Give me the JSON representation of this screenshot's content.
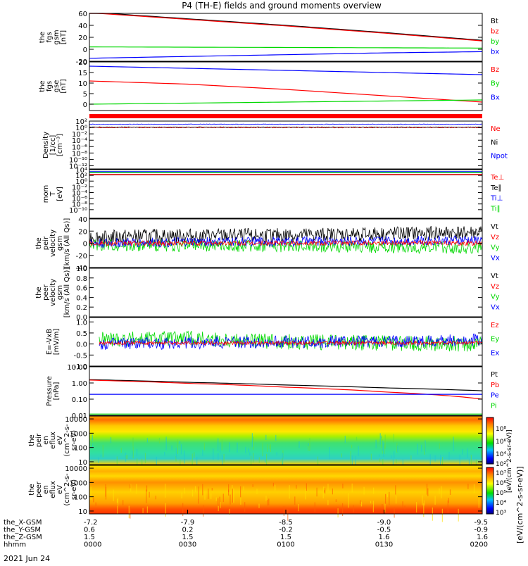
{
  "title": "P4 (TH-E) fields and ground moments overview",
  "date_label": "2021 Jun 24",
  "colorbar_label": "[eV/(cm^2-s-sr-eV)]",
  "colorbar_label_2": "[eV/(cm^2-s-sr-eV)]",
  "colorbar_ticks": [
    "10⁸",
    "10⁶",
    "10⁴",
    "10²"
  ],
  "colorbar_ticks_2": [
    "10⁷",
    "10⁶",
    "10⁵",
    "10⁴",
    "10³"
  ],
  "colors": {
    "black": "#000000",
    "red": "#ff0000",
    "green": "#00d800",
    "blue": "#0000ff"
  },
  "time_axis": {
    "rows": [
      {
        "name": "the_X-GSM",
        "values": [
          "-7.2",
          "-7.9",
          "-8.5",
          "-9.0",
          "-9.5"
        ]
      },
      {
        "name": "the_Y-GSM",
        "values": [
          "0.6",
          "0.2",
          "-0.2",
          "-0.5",
          "-0.9"
        ]
      },
      {
        "name": "the_Z-GSM",
        "values": [
          "1.5",
          "1.5",
          "1.5",
          "1.6",
          "1.6"
        ]
      },
      {
        "name": "hhmm",
        "values": [
          "0000",
          "0030",
          "0100",
          "0130",
          "0200"
        ]
      }
    ]
  },
  "chart_data": [
    {
      "id": "fgs",
      "type": "line",
      "ylabel": "the\nfgs\ngsm\n[nT]",
      "ylim": [
        -20,
        60
      ],
      "yticks": [
        "60",
        "40",
        "20",
        "0",
        "-20"
      ],
      "ytick_values": [
        60,
        40,
        20,
        0,
        -20
      ],
      "legend": [
        {
          "name": "Bt",
          "color": "black"
        },
        {
          "name": "bz",
          "color": "red"
        },
        {
          "name": "by",
          "color": "green"
        },
        {
          "name": "bx",
          "color": "blue"
        }
      ],
      "x": [
        0,
        30,
        60,
        90,
        120
      ],
      "series": [
        {
          "name": "Bt",
          "color": "black",
          "values": [
            62,
            51,
            40,
            28,
            15
          ]
        },
        {
          "name": "bz",
          "color": "red",
          "values": [
            61,
            50,
            39,
            27,
            14
          ]
        },
        {
          "name": "by",
          "color": "green",
          "values": [
            4,
            3.5,
            3,
            2.5,
            2
          ]
        },
        {
          "name": "bx",
          "color": "blue",
          "values": [
            -15,
            -12,
            -9,
            -6,
            -4
          ]
        }
      ]
    },
    {
      "id": "fgs_gse",
      "type": "line",
      "ylabel": "the\nfgs\ngse\n[nT]",
      "ylim": [
        -3,
        20
      ],
      "yticks": [
        "20",
        "15",
        "10",
        "5",
        "0"
      ],
      "ytick_values": [
        20,
        15,
        10,
        5,
        0
      ],
      "legend": [
        {
          "name": "Bz",
          "color": "red"
        },
        {
          "name": "By",
          "color": "green"
        },
        {
          "name": "Bx",
          "color": "blue"
        }
      ],
      "x": [
        0,
        30,
        60,
        90,
        120
      ],
      "series": [
        {
          "name": "Bz",
          "color": "red",
          "values": [
            11,
            9.5,
            7,
            4,
            1
          ]
        },
        {
          "name": "By",
          "color": "green",
          "values": [
            0,
            0.5,
            1,
            1.5,
            2
          ]
        },
        {
          "name": "Bx",
          "color": "blue",
          "values": [
            18,
            17,
            16,
            15,
            14
          ]
        }
      ]
    },
    {
      "id": "density",
      "type": "line",
      "ylabel": "Density\n[1/cc]\n[cm⁻³]",
      "scale": "log",
      "ylim": [
        -13,
        2
      ],
      "yticks": [
        "10²",
        "10⁰",
        "10⁻²",
        "10⁻⁴",
        "10⁻⁶",
        "10⁻⁸",
        "10⁻¹⁰",
        "10⁻¹²"
      ],
      "ytick_values": [
        2,
        0,
        -2,
        -4,
        -6,
        -8,
        -10,
        -12
      ],
      "legend": [
        {
          "name": "Ne",
          "color": "red"
        },
        {
          "name": "Ni",
          "color": "black"
        },
        {
          "name": "Npot",
          "color": "blue"
        }
      ],
      "x": [
        0,
        30,
        60,
        90,
        120
      ],
      "series": [
        {
          "name": "Ne",
          "color": "red",
          "values": [
            0,
            0,
            0,
            0,
            0
          ]
        },
        {
          "name": "Ni",
          "color": "black",
          "values": [
            0.1,
            0.1,
            0.1,
            0.1,
            0.1
          ]
        },
        {
          "name": "Npot",
          "color": "blue",
          "values": [
            1,
            1,
            1,
            1,
            1
          ]
        }
      ]
    },
    {
      "id": "temp",
      "type": "line",
      "ylabel": "mom\nT\n[eV]",
      "scale": "log",
      "ylim": [
        -13,
        4
      ],
      "yticks": [
        "10⁴",
        "10²",
        "10⁰",
        "10⁻²",
        "10⁻⁴",
        "10⁻⁶",
        "10⁻⁸",
        "10⁻¹⁰"
      ],
      "ytick_values": [
        4,
        2,
        0,
        -2,
        -4,
        -6,
        -8,
        -10
      ],
      "legend": [
        {
          "name": "Te⊥",
          "color": "red"
        },
        {
          "name": "Te∥",
          "color": "black"
        },
        {
          "name": "Ti⊥",
          "color": "blue"
        },
        {
          "name": "Ti∥",
          "color": "green"
        }
      ],
      "x": [
        0,
        30,
        60,
        90,
        120
      ],
      "series": [
        {
          "name": "Ti∥",
          "color": "green",
          "values": [
            3,
            3,
            3,
            3,
            3
          ]
        },
        {
          "name": "Ti⊥",
          "color": "blue",
          "values": [
            3.3,
            3.3,
            3.3,
            3.3,
            3.3
          ]
        },
        {
          "name": "Te∥",
          "color": "black",
          "values": [
            2.2,
            2.2,
            2.2,
            2.2,
            2.2
          ]
        },
        {
          "name": "Te⊥",
          "color": "red",
          "values": [
            2.3,
            2.3,
            2.3,
            2.3,
            2.3
          ]
        }
      ]
    },
    {
      "id": "peir_vel",
      "type": "line",
      "ylabel": "the\npeir\nvelocity\ngsm\n[km/s (All Qs)]",
      "ylim": [
        -40,
        40
      ],
      "yticks": [
        "40",
        "20",
        "0",
        "-20",
        "-40"
      ],
      "ytick_values": [
        40,
        20,
        0,
        -20,
        -40
      ],
      "legend": [
        {
          "name": "Vt",
          "color": "black"
        },
        {
          "name": "Vz",
          "color": "red"
        },
        {
          "name": "Vy",
          "color": "green"
        },
        {
          "name": "Vx",
          "color": "blue"
        }
      ],
      "x": [
        0,
        30,
        60,
        90,
        120
      ],
      "series": [
        {
          "name": "Vt",
          "color": "black",
          "values": [
            10,
            12,
            13,
            15,
            18
          ]
        },
        {
          "name": "Vy",
          "color": "green",
          "values": [
            -3,
            -4,
            -5,
            -6,
            -8
          ]
        },
        {
          "name": "Vx",
          "color": "blue",
          "values": [
            0,
            2,
            3,
            4,
            5
          ]
        },
        {
          "name": "Vz",
          "color": "red",
          "values": [
            0,
            0,
            0,
            1,
            0
          ]
        }
      ]
    },
    {
      "id": "peer_vel",
      "type": "line",
      "ylabel": "the\npeer\nvelocity\ngsm\n[km/s (All Qs)]",
      "ylim": [
        0,
        1
      ],
      "yticks": [
        "1.0",
        "0.8",
        "0.6",
        "0.4",
        "0.2",
        "0.0"
      ],
      "ytick_values": [
        1,
        0.8,
        0.6,
        0.4,
        0.2,
        0
      ],
      "legend": [
        {
          "name": "Vt",
          "color": "black"
        },
        {
          "name": "Vz",
          "color": "red"
        },
        {
          "name": "Vy",
          "color": "green"
        },
        {
          "name": "Vx",
          "color": "blue"
        }
      ],
      "x": [],
      "series": []
    },
    {
      "id": "efield",
      "type": "line",
      "ylabel": "E=-VxB\n[mV/m]",
      "ylim": [
        -1,
        1.2
      ],
      "yticks": [
        "1.0",
        "0.5",
        "0.0",
        "-0.5",
        "-1.0"
      ],
      "ytick_values": [
        1,
        0.5,
        0,
        -0.5,
        -1
      ],
      "legend": [
        {
          "name": "Ez",
          "color": "red"
        },
        {
          "name": "Ey",
          "color": "green"
        },
        {
          "name": "Ex",
          "color": "blue"
        }
      ],
      "x": [
        3,
        30,
        60,
        90,
        120
      ],
      "series": [
        {
          "name": "Ey",
          "color": "green",
          "values": [
            0.2,
            0.25,
            0.1,
            0.05,
            0.0
          ]
        },
        {
          "name": "Ex",
          "color": "blue",
          "values": [
            0.0,
            0.05,
            0.1,
            0.1,
            0.2
          ]
        },
        {
          "name": "Ez",
          "color": "red",
          "values": [
            0.05,
            0.05,
            0.05,
            0.05,
            0.05
          ]
        }
      ]
    },
    {
      "id": "pressure",
      "type": "line",
      "ylabel": "Pressure\n[nPa]",
      "scale": "log",
      "ylim": [
        -2,
        1
      ],
      "yticks": [
        "10.00",
        "1.00",
        "0.10",
        "0.01"
      ],
      "ytick_values": [
        1,
        0,
        -1,
        -2
      ],
      "legend": [
        {
          "name": "Pt",
          "color": "black"
        },
        {
          "name": "Pb",
          "color": "red"
        },
        {
          "name": "Pe",
          "color": "blue"
        },
        {
          "name": "Pi",
          "color": "green"
        }
      ],
      "x": [
        0,
        30,
        60,
        90,
        120
      ],
      "series": [
        {
          "name": "Pt",
          "color": "black",
          "values": [
            1.6,
            1.1,
            0.75,
            0.5,
            0.33
          ]
        },
        {
          "name": "Pb",
          "color": "red",
          "values": [
            1.5,
            0.95,
            0.55,
            0.28,
            0.1
          ]
        },
        {
          "name": "Pe",
          "color": "blue",
          "values": [
            0.2,
            0.2,
            0.2,
            0.2,
            0.2
          ]
        },
        {
          "name": "Pi",
          "color": "green",
          "values": [
            0.012,
            0.012,
            0.012,
            0.012,
            0.012
          ]
        }
      ]
    },
    {
      "id": "peir_en",
      "type": "heatmap",
      "ylabel": "the\npeir\nen\neflux\neV\n(cm^2-s-\nsr-eV)",
      "scale": "log",
      "ylim": [
        0.8,
        4.2
      ],
      "yticks": [
        "10000",
        "1000",
        "100",
        "10"
      ],
      "ytick_values": [
        4,
        3,
        2,
        1
      ]
    },
    {
      "id": "peer_en",
      "type": "heatmap",
      "ylabel": "the\npeer\nen\neflux\neV\n(cm^2-s-\nsr-eV)",
      "scale": "log",
      "ylim": [
        0.8,
        4.2
      ],
      "yticks": [
        "10000",
        "1000",
        "100",
        "10"
      ],
      "ytick_values": [
        4,
        3,
        2,
        1
      ]
    }
  ]
}
